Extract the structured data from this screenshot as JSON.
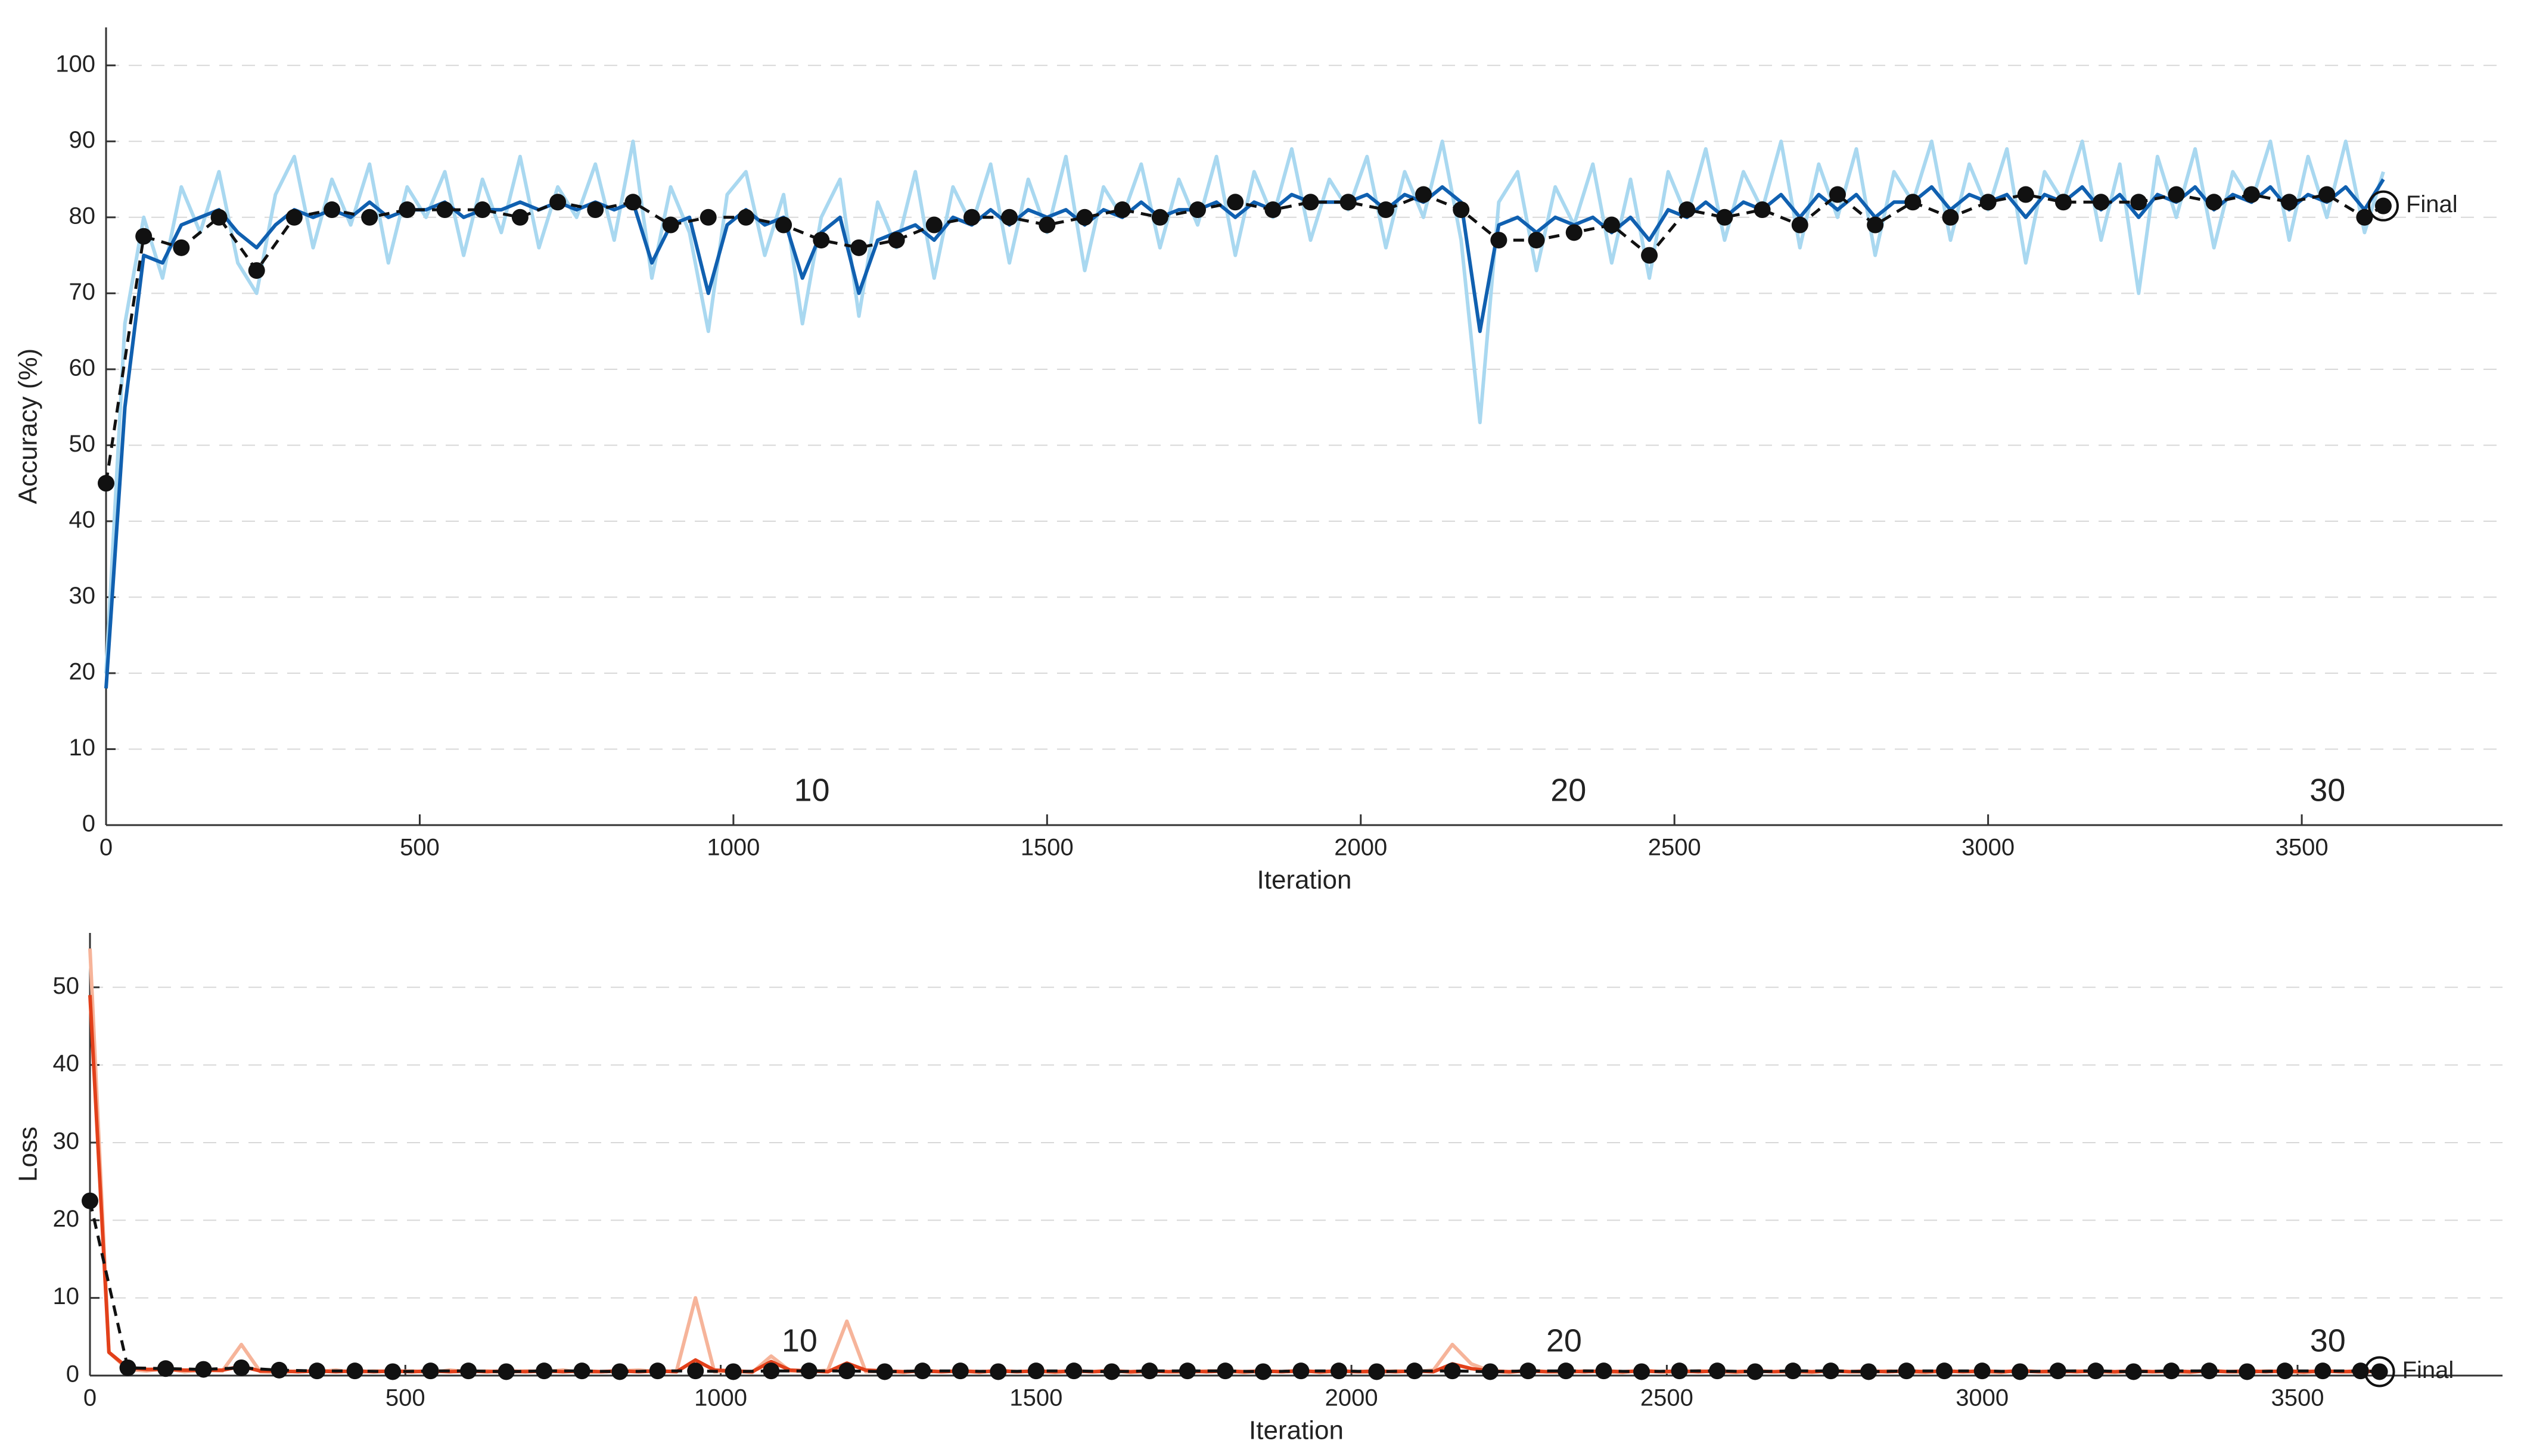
{
  "chart_data": [
    {
      "type": "line",
      "ylabel": "Accuracy (%)",
      "xlabel": "Iteration",
      "xlim": [
        0,
        3820
      ],
      "ylim": [
        0,
        105
      ],
      "xticks": [
        0,
        500,
        1000,
        1500,
        2000,
        2500,
        3000,
        3500
      ],
      "yticks": [
        0,
        10,
        20,
        30,
        40,
        50,
        60,
        70,
        80,
        90,
        100
      ],
      "grid": true,
      "epoch_labels": {
        "values": [
          10,
          20,
          30
        ],
        "x": [
          1125,
          2331,
          3541
        ]
      },
      "final_label": "Final",
      "x": [
        0,
        30,
        60,
        90,
        120,
        150,
        180,
        210,
        240,
        270,
        300,
        330,
        360,
        390,
        420,
        450,
        480,
        510,
        540,
        570,
        600,
        630,
        660,
        690,
        720,
        750,
        780,
        810,
        840,
        870,
        900,
        930,
        960,
        990,
        1020,
        1050,
        1080,
        1110,
        1140,
        1170,
        1200,
        1230,
        1260,
        1290,
        1320,
        1350,
        1380,
        1410,
        1440,
        1470,
        1500,
        1530,
        1560,
        1590,
        1620,
        1650,
        1680,
        1710,
        1740,
        1770,
        1800,
        1830,
        1860,
        1890,
        1920,
        1950,
        1980,
        2010,
        2040,
        2070,
        2100,
        2130,
        2160,
        2190,
        2220,
        2250,
        2280,
        2310,
        2340,
        2370,
        2400,
        2430,
        2460,
        2490,
        2520,
        2550,
        2580,
        2610,
        2640,
        2670,
        2700,
        2730,
        2760,
        2790,
        2820,
        2850,
        2880,
        2910,
        2940,
        2970,
        3000,
        3030,
        3060,
        3090,
        3120,
        3150,
        3180,
        3210,
        3240,
        3270,
        3300,
        3330,
        3360,
        3390,
        3420,
        3450,
        3480,
        3510,
        3540,
        3570,
        3600,
        3630
      ],
      "series": [
        {
          "color": "#a9d8f0",
          "values": [
            20,
            66,
            80,
            72,
            84,
            78,
            86,
            74,
            70,
            83,
            88,
            76,
            85,
            79,
            87,
            74,
            84,
            80,
            86,
            75,
            85,
            78,
            88,
            76,
            84,
            80,
            87,
            77,
            90,
            72,
            84,
            78,
            65,
            83,
            86,
            75,
            83,
            66,
            80,
            85,
            67,
            82,
            76,
            86,
            72,
            84,
            79,
            87,
            74,
            85,
            78,
            88,
            73,
            84,
            80,
            87,
            76,
            85,
            79,
            88,
            75,
            86,
            80,
            89,
            77,
            85,
            81,
            88,
            76,
            86,
            80,
            90,
            77,
            53,
            82,
            86,
            73,
            84,
            79,
            87,
            74,
            85,
            72,
            86,
            80,
            89,
            77,
            86,
            81,
            90,
            76,
            87,
            80,
            89,
            75,
            86,
            82,
            90,
            77,
            87,
            81,
            89,
            74,
            86,
            82,
            90,
            77,
            87,
            70,
            88,
            80,
            89,
            76,
            86,
            82,
            90,
            77,
            88,
            80,
            90,
            78,
            86
          ]
        },
        {
          "color": "#1060b0",
          "values": [
            18,
            55,
            75,
            74,
            79,
            80,
            81,
            78,
            76,
            79,
            81,
            80,
            81,
            80,
            82,
            80,
            81,
            81,
            82,
            80,
            81,
            81,
            82,
            81,
            82,
            81,
            82,
            81,
            82,
            74,
            79,
            80,
            70,
            79,
            81,
            79,
            80,
            72,
            78,
            80,
            70,
            77,
            78,
            79,
            77,
            80,
            79,
            81,
            79,
            81,
            80,
            81,
            79,
            81,
            80,
            82,
            80,
            81,
            81,
            82,
            80,
            82,
            81,
            83,
            82,
            82,
            82,
            83,
            81,
            83,
            82,
            84,
            82,
            65,
            79,
            80,
            78,
            80,
            79,
            80,
            78,
            80,
            77,
            81,
            80,
            82,
            80,
            82,
            81,
            83,
            80,
            83,
            81,
            83,
            80,
            82,
            82,
            84,
            81,
            83,
            82,
            83,
            80,
            83,
            82,
            84,
            81,
            83,
            80,
            83,
            82,
            84,
            81,
            83,
            82,
            84,
            81,
            83,
            82,
            84,
            81,
            85
          ]
        },
        {
          "color": "#111111",
          "marker": "circle",
          "dashed": true,
          "x": [
            0,
            60,
            120,
            180,
            240,
            300,
            360,
            420,
            480,
            540,
            600,
            660,
            720,
            780,
            840,
            900,
            960,
            1020,
            1080,
            1140,
            1200,
            1260,
            1320,
            1380,
            1440,
            1500,
            1560,
            1620,
            1680,
            1740,
            1800,
            1860,
            1920,
            1980,
            2040,
            2100,
            2160,
            2220,
            2280,
            2340,
            2400,
            2460,
            2520,
            2580,
            2640,
            2700,
            2760,
            2820,
            2880,
            2940,
            3000,
            3060,
            3120,
            3180,
            3240,
            3300,
            3360,
            3420,
            3480,
            3540,
            3600,
            3630
          ],
          "values": [
            45,
            77.5,
            76,
            80,
            73,
            80,
            81,
            80,
            81,
            81,
            81,
            80,
            82,
            81,
            82,
            79,
            80,
            80,
            79,
            77,
            76,
            77,
            79,
            80,
            80,
            79,
            80,
            81,
            80,
            81,
            82,
            81,
            82,
            82,
            81,
            83,
            81,
            77,
            77,
            78,
            79,
            75,
            81,
            80,
            81,
            79,
            83,
            79,
            82,
            80,
            82,
            83,
            82,
            82,
            82,
            83,
            82,
            83,
            82,
            83,
            80,
            81.5
          ]
        }
      ]
    },
    {
      "type": "line",
      "ylabel": "Loss",
      "xlabel": "Iteration",
      "xlim": [
        0,
        3825
      ],
      "ylim": [
        0,
        57
      ],
      "xticks": [
        0,
        500,
        1000,
        1500,
        2000,
        2500,
        3000,
        3500
      ],
      "yticks": [
        0,
        10,
        20,
        30,
        40,
        50
      ],
      "grid": true,
      "epoch_labels": {
        "values": [
          10,
          20,
          30
        ],
        "x": [
          1125,
          2337,
          3548
        ]
      },
      "final_label": "Final",
      "x": [
        0,
        30,
        60,
        90,
        120,
        150,
        180,
        210,
        240,
        270,
        300,
        330,
        360,
        390,
        420,
        450,
        480,
        510,
        540,
        570,
        600,
        630,
        660,
        690,
        720,
        750,
        780,
        810,
        840,
        870,
        900,
        930,
        960,
        990,
        1020,
        1050,
        1080,
        1110,
        1140,
        1170,
        1200,
        1230,
        1260,
        1290,
        1320,
        1350,
        1380,
        1410,
        1440,
        1470,
        1500,
        1530,
        1560,
        1590,
        1620,
        1650,
        1680,
        1710,
        1740,
        1770,
        1800,
        1830,
        1860,
        1890,
        1920,
        1950,
        1980,
        2010,
        2040,
        2070,
        2100,
        2130,
        2160,
        2190,
        2220,
        2250,
        2280,
        2310,
        2340,
        2370,
        2400,
        2430,
        2460,
        2490,
        2520,
        2550,
        2580,
        2610,
        2640,
        2670,
        2700,
        2730,
        2760,
        2790,
        2820,
        2850,
        2880,
        2910,
        2940,
        2970,
        3000,
        3030,
        3060,
        3090,
        3120,
        3150,
        3180,
        3210,
        3240,
        3270,
        3300,
        3330,
        3360,
        3390,
        3420,
        3450,
        3480,
        3510,
        3540,
        3570,
        3600,
        3630
      ],
      "series": [
        {
          "color": "#f6b49a",
          "values": [
            55,
            3,
            0.8,
            0.6,
            0.9,
            0.5,
            0.7,
            0.6,
            4,
            0.5,
            0.4,
            0.6,
            0.5,
            0.7,
            0.4,
            0.6,
            0.5,
            0.6,
            0.4,
            0.7,
            0.5,
            0.6,
            0.4,
            0.6,
            0.5,
            0.7,
            0.4,
            0.5,
            0.6,
            0.7,
            0.5,
            0.6,
            10,
            0.5,
            0.6,
            0.4,
            2.5,
            0.6,
            0.5,
            0.7,
            7,
            0.5,
            0.6,
            0.4,
            0.7,
            0.5,
            0.6,
            0.4,
            0.7,
            0.5,
            0.6,
            0.4,
            0.6,
            0.5,
            0.7,
            0.4,
            0.6,
            0.5,
            0.4,
            0.6,
            0.6,
            0.4,
            0.6,
            0.5,
            0.7,
            0.4,
            0.6,
            0.5,
            0.4,
            0.6,
            0.5,
            0.7,
            4,
            1.5,
            0.6,
            0.4,
            0.7,
            0.5,
            0.4,
            0.6,
            0.5,
            0.4,
            0.7,
            0.5,
            0.4,
            0.6,
            0.5,
            0.4,
            0.6,
            0.5,
            0.5,
            0.4,
            0.7,
            0.5,
            0.4,
            0.6,
            0.5,
            0.4,
            0.6,
            0.5,
            0.5,
            0.4,
            0.7,
            0.5,
            0.4,
            0.6,
            0.5,
            0.4,
            0.6,
            0.5,
            0.5,
            0.4,
            0.7,
            0.5,
            0.4,
            0.6,
            0.5,
            0.4,
            0.6,
            0.5,
            0.4,
            0.6
          ]
        },
        {
          "color": "#e2401a",
          "values": [
            49,
            3,
            1,
            0.8,
            0.8,
            0.7,
            0.7,
            0.7,
            1.2,
            0.6,
            0.6,
            0.5,
            0.6,
            0.5,
            0.6,
            0.5,
            0.6,
            0.5,
            0.6,
            0.5,
            0.6,
            0.5,
            0.6,
            0.5,
            0.6,
            0.5,
            0.6,
            0.5,
            0.6,
            0.5,
            0.6,
            0.5,
            2,
            0.7,
            0.6,
            0.5,
            1.8,
            0.7,
            0.6,
            0.5,
            1.6,
            0.7,
            0.6,
            0.5,
            0.6,
            0.5,
            0.6,
            0.5,
            0.6,
            0.5,
            0.6,
            0.5,
            0.6,
            0.5,
            0.6,
            0.5,
            0.6,
            0.5,
            0.6,
            0.5,
            0.6,
            0.5,
            0.6,
            0.5,
            0.6,
            0.5,
            0.6,
            0.5,
            0.6,
            0.5,
            0.6,
            0.5,
            1.5,
            0.9,
            0.6,
            0.5,
            0.6,
            0.5,
            0.6,
            0.5,
            0.6,
            0.5,
            0.6,
            0.5,
            0.6,
            0.5,
            0.6,
            0.5,
            0.6,
            0.5,
            0.6,
            0.5,
            0.6,
            0.5,
            0.6,
            0.5,
            0.6,
            0.5,
            0.6,
            0.5,
            0.6,
            0.5,
            0.6,
            0.5,
            0.6,
            0.5,
            0.6,
            0.5,
            0.6,
            0.5,
            0.6,
            0.5,
            0.6,
            0.5,
            0.6,
            0.5,
            0.6,
            0.5,
            0.6,
            0.5,
            0.6,
            0.5
          ]
        },
        {
          "color": "#111111",
          "marker": "circle",
          "dashed": true,
          "x": [
            0,
            60,
            120,
            180,
            240,
            300,
            360,
            420,
            480,
            540,
            600,
            660,
            720,
            780,
            840,
            900,
            960,
            1020,
            1080,
            1140,
            1200,
            1260,
            1320,
            1380,
            1440,
            1500,
            1560,
            1620,
            1680,
            1740,
            1800,
            1860,
            1920,
            1980,
            2040,
            2100,
            2160,
            2220,
            2280,
            2340,
            2400,
            2460,
            2520,
            2580,
            2640,
            2700,
            2760,
            2820,
            2880,
            2940,
            3000,
            3060,
            3120,
            3180,
            3240,
            3300,
            3360,
            3420,
            3480,
            3540,
            3600,
            3630
          ],
          "values": [
            22.5,
            1,
            0.9,
            0.8,
            1,
            0.7,
            0.6,
            0.6,
            0.5,
            0.6,
            0.6,
            0.5,
            0.6,
            0.6,
            0.5,
            0.6,
            0.6,
            0.5,
            0.6,
            0.6,
            0.6,
            0.5,
            0.6,
            0.6,
            0.5,
            0.6,
            0.6,
            0.5,
            0.6,
            0.6,
            0.6,
            0.5,
            0.6,
            0.6,
            0.5,
            0.6,
            0.6,
            0.5,
            0.6,
            0.6,
            0.6,
            0.5,
            0.6,
            0.6,
            0.5,
            0.6,
            0.6,
            0.5,
            0.6,
            0.6,
            0.6,
            0.5,
            0.6,
            0.6,
            0.5,
            0.6,
            0.6,
            0.5,
            0.6,
            0.6,
            0.6,
            0.5
          ]
        }
      ]
    }
  ]
}
